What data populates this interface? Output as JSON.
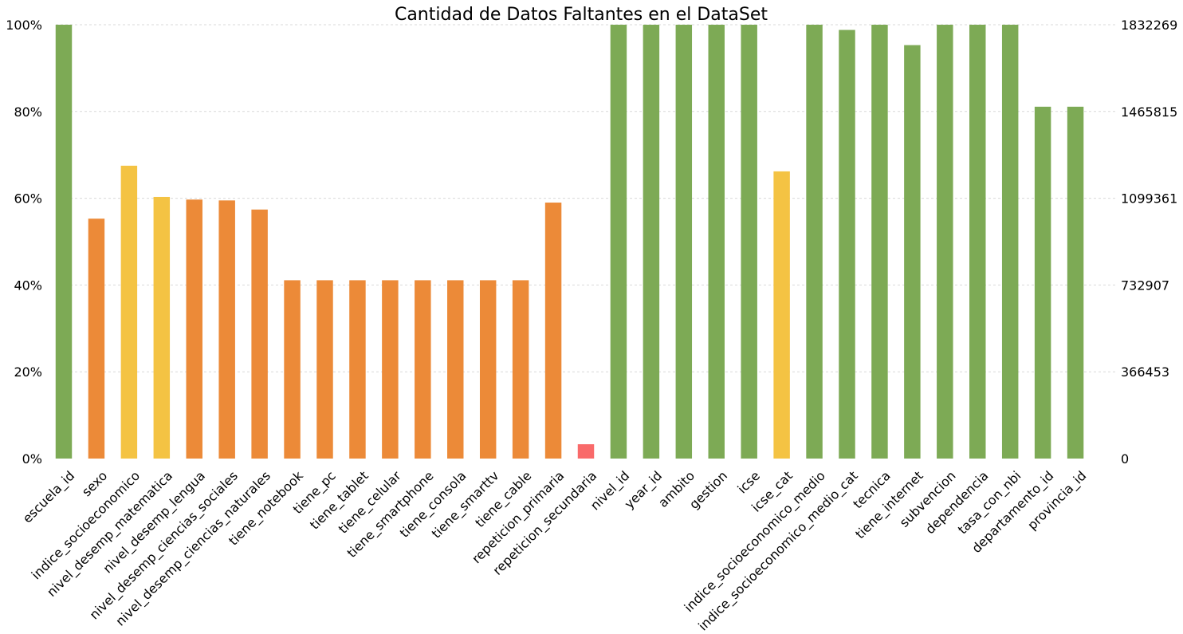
{
  "chart_data": {
    "type": "bar",
    "title": "Cantidad de Datos Faltantes en el DataSet",
    "xlabel": "",
    "ylabel": "",
    "ylim": [
      0,
      1
    ],
    "grid": true,
    "left_ticks": [
      "0%",
      "20%",
      "40%",
      "60%",
      "80%",
      "100%"
    ],
    "right_ticks": [
      "0",
      "366453",
      "732907",
      "1099361",
      "1465815",
      "1832269"
    ],
    "categories": [
      "escuela_id",
      "sexo",
      "indice_socioeconomico",
      "nivel_desemp_matematica",
      "nivel_desemp_lengua",
      "nivel_desemp_ciencias_sociales",
      "nivel_desemp_ciencias_naturales",
      "tiene_notebook",
      "tiene_pc",
      "tiene_tablet",
      "tiene_celular",
      "tiene_smartphone",
      "tiene_consola",
      "tiene_smarttv",
      "tiene_cable",
      "repeticion_primaria",
      "repeticion_secundaria",
      "nivel_id",
      "year_id",
      "ambito",
      "gestion",
      "icse",
      "icse_cat",
      "indice_socioeconomico_medio",
      "indice_socioeconomico_medio_cat",
      "tecnica",
      "tiene_internet",
      "subvencion",
      "dependencia",
      "tasa_con_nbi",
      "departamento_id",
      "provincia_id"
    ],
    "values": [
      1.0,
      0.553,
      0.675,
      0.603,
      0.597,
      0.595,
      0.574,
      0.411,
      0.411,
      0.411,
      0.411,
      0.411,
      0.411,
      0.411,
      0.411,
      0.59,
      0.033,
      1.0,
      1.0,
      1.0,
      1.0,
      1.0,
      0.662,
      1.0,
      0.988,
      1.0,
      0.953,
      1.0,
      1.0,
      1.0,
      0.811,
      0.811
    ],
    "bar_colors": [
      "#7daa55",
      "#ec8a38",
      "#f4c343",
      "#f4c343",
      "#ec8a38",
      "#ec8a38",
      "#ec8a38",
      "#ec8a38",
      "#ec8a38",
      "#ec8a38",
      "#ec8a38",
      "#ec8a38",
      "#ec8a38",
      "#ec8a38",
      "#ec8a38",
      "#ec8a38",
      "#f96a6a",
      "#7daa55",
      "#7daa55",
      "#7daa55",
      "#7daa55",
      "#7daa55",
      "#f4c343",
      "#7daa55",
      "#7daa55",
      "#7daa55",
      "#7daa55",
      "#7daa55",
      "#7daa55",
      "#7daa55",
      "#7daa55",
      "#7daa55"
    ]
  }
}
